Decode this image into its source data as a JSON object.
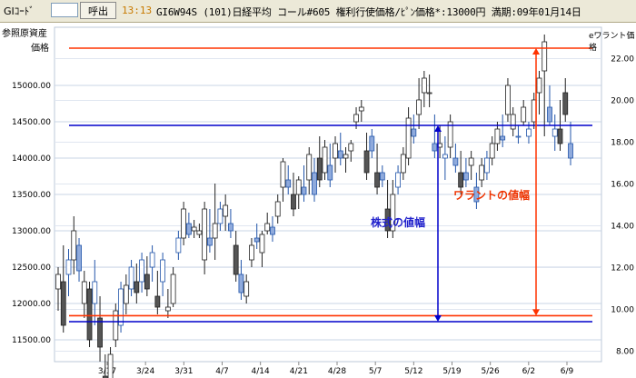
{
  "toolbar": {
    "code_label": "GIｺｰﾄﾞ",
    "code_value": "",
    "call_button": "呼出",
    "time": "13:13",
    "info": "GI6W94S (101)日経平均 コール#605 権利行使価格/ﾋﾟﾝ価格*:13000円 満期:09年01月14日"
  },
  "left_axis": {
    "title_line1": "参照原資産",
    "title_line2": "価格",
    "ticks": [
      "15000.00",
      "14500.00",
      "14000.00",
      "13500.00",
      "13000.00",
      "12500.00",
      "12000.00",
      "11500.00"
    ]
  },
  "right_axis": {
    "title": "eワラント価格",
    "ticks": [
      "22.00",
      "20.00",
      "18.00",
      "16.00",
      "14.00",
      "12.00",
      "10.00",
      "8.00"
    ]
  },
  "x_axis": {
    "ticks": [
      "3/17",
      "3/24",
      "3/31",
      "4/7",
      "4/14",
      "4/21",
      "4/28",
      "5/7",
      "5/12",
      "5/19",
      "5/26",
      "6/2",
      "6/9"
    ]
  },
  "annotations": {
    "stock_range": "株式の値幅",
    "warrant_range": "ワラントの値幅"
  },
  "colors": {
    "red_line": "#ff3300",
    "blue_line": "#0000cc",
    "stock_text": "#2222cc",
    "warrant_text": "#ee3300"
  },
  "chart_data": {
    "type": "candlestick",
    "left_axis_range": [
      11200,
      15800
    ],
    "right_axis_range": [
      7.5,
      23.5
    ],
    "reference_lines": {
      "stock_high": 14450,
      "stock_low": 11750,
      "warrant_high": 22.5,
      "warrant_low": 9.7
    },
    "candles": [
      {
        "o": 12200,
        "h": 12500,
        "l": 11900,
        "c": 12400,
        "s": "stock"
      },
      {
        "o": 12300,
        "h": 12800,
        "l": 11600,
        "c": 11700,
        "s": "stock"
      },
      {
        "o": 12400,
        "h": 12750,
        "l": 12100,
        "c": 12600,
        "s": "warrant"
      },
      {
        "o": 12600,
        "h": 13200,
        "l": 12400,
        "c": 13000,
        "s": "stock"
      },
      {
        "o": 12800,
        "h": 12900,
        "l": 12300,
        "c": 12450,
        "s": "warrant"
      },
      {
        "o": 12000,
        "h": 12450,
        "l": 11800,
        "c": 12300,
        "s": "stock"
      },
      {
        "o": 12200,
        "h": 12300,
        "l": 11400,
        "c": 11500,
        "s": "stock"
      },
      {
        "o": 12000,
        "h": 12600,
        "l": 11700,
        "c": 12300,
        "s": "warrant"
      },
      {
        "o": 11800,
        "h": 12100,
        "l": 11200,
        "c": 11400,
        "s": "stock"
      },
      {
        "o": 11000,
        "h": 11300,
        "l": 10700,
        "c": 10900,
        "s": "stock"
      },
      {
        "o": 10800,
        "h": 11400,
        "l": 10700,
        "c": 11300,
        "s": "stock"
      },
      {
        "o": 11500,
        "h": 12000,
        "l": 11400,
        "c": 11900,
        "s": "stock"
      },
      {
        "o": 11700,
        "h": 12300,
        "l": 11600,
        "c": 12200,
        "s": "warrant"
      },
      {
        "o": 12000,
        "h": 12400,
        "l": 11850,
        "c": 12250,
        "s": "stock"
      },
      {
        "o": 12200,
        "h": 12600,
        "l": 12100,
        "c": 12500,
        "s": "warrant"
      },
      {
        "o": 12300,
        "h": 12550,
        "l": 12000,
        "c": 12150,
        "s": "stock"
      },
      {
        "o": 12300,
        "h": 12700,
        "l": 12150,
        "c": 12600,
        "s": "warrant"
      },
      {
        "o": 12400,
        "h": 12650,
        "l": 12100,
        "c": 12200,
        "s": "stock"
      },
      {
        "o": 12500,
        "h": 12800,
        "l": 12300,
        "c": 12700,
        "s": "warrant"
      },
      {
        "o": 12100,
        "h": 12450,
        "l": 11850,
        "c": 11950,
        "s": "stock"
      },
      {
        "o": 12300,
        "h": 12700,
        "l": 12100,
        "c": 12600,
        "s": "warrant"
      },
      {
        "o": 11900,
        "h": 12200,
        "l": 11800,
        "c": 11950,
        "s": "stock"
      },
      {
        "o": 12000,
        "h": 12500,
        "l": 11950,
        "c": 12400,
        "s": "stock"
      },
      {
        "o": 12700,
        "h": 13000,
        "l": 12600,
        "c": 12900,
        "s": "warrant"
      },
      {
        "o": 12900,
        "h": 13400,
        "l": 12800,
        "c": 13300,
        "s": "stock"
      },
      {
        "o": 13100,
        "h": 13250,
        "l": 12900,
        "c": 12950,
        "s": "warrant"
      },
      {
        "o": 13000,
        "h": 13150,
        "l": 12900,
        "c": 13050,
        "s": "stock"
      },
      {
        "o": 12950,
        "h": 13100,
        "l": 12900,
        "c": 13000,
        "s": "stock"
      },
      {
        "o": 12600,
        "h": 13400,
        "l": 12400,
        "c": 13300,
        "s": "stock"
      },
      {
        "o": 12900,
        "h": 13300,
        "l": 12700,
        "c": 12800,
        "s": "warrant"
      },
      {
        "o": 12900,
        "h": 13650,
        "l": 12600,
        "c": 13100,
        "s": "stock"
      },
      {
        "o": 13100,
        "h": 13400,
        "l": 13000,
        "c": 13300,
        "s": "warrant"
      },
      {
        "o": 13200,
        "h": 13500,
        "l": 13000,
        "c": 13350,
        "s": "stock"
      },
      {
        "o": 13100,
        "h": 13300,
        "l": 12900,
        "c": 13000,
        "s": "warrant"
      },
      {
        "o": 12800,
        "h": 13000,
        "l": 12300,
        "c": 12400,
        "s": "stock"
      },
      {
        "o": 12400,
        "h": 12600,
        "l": 12050,
        "c": 12150,
        "s": "warrant"
      },
      {
        "o": 12100,
        "h": 12400,
        "l": 12000,
        "c": 12300,
        "s": "stock"
      },
      {
        "o": 12600,
        "h": 12900,
        "l": 12500,
        "c": 12800,
        "s": "stock"
      },
      {
        "o": 12900,
        "h": 13100,
        "l": 12750,
        "c": 12850,
        "s": "warrant"
      },
      {
        "o": 12700,
        "h": 13000,
        "l": 12500,
        "c": 12950,
        "s": "stock"
      },
      {
        "o": 13000,
        "h": 13250,
        "l": 12950,
        "c": 13100,
        "s": "stock"
      },
      {
        "o": 13050,
        "h": 13200,
        "l": 12850,
        "c": 12950,
        "s": "warrant"
      },
      {
        "o": 13200,
        "h": 13500,
        "l": 13100,
        "c": 13400,
        "s": "stock"
      },
      {
        "o": 13600,
        "h": 14000,
        "l": 13400,
        "c": 13950,
        "s": "stock"
      },
      {
        "o": 13700,
        "h": 13900,
        "l": 13500,
        "c": 13600,
        "s": "warrant"
      },
      {
        "o": 13500,
        "h": 13800,
        "l": 13200,
        "c": 13300,
        "s": "stock"
      },
      {
        "o": 13500,
        "h": 13750,
        "l": 13300,
        "c": 13700,
        "s": "stock"
      },
      {
        "o": 13600,
        "h": 13900,
        "l": 13400,
        "c": 13500,
        "s": "warrant"
      },
      {
        "o": 13700,
        "h": 14150,
        "l": 13500,
        "c": 14050,
        "s": "stock"
      },
      {
        "o": 13800,
        "h": 14000,
        "l": 13400,
        "c": 13500,
        "s": "warrant"
      },
      {
        "o": 14000,
        "h": 14300,
        "l": 13600,
        "c": 13700,
        "s": "stock"
      },
      {
        "o": 13800,
        "h": 14250,
        "l": 13700,
        "c": 14150,
        "s": "stock"
      },
      {
        "o": 13900,
        "h": 14200,
        "l": 13600,
        "c": 13700,
        "s": "warrant"
      },
      {
        "o": 14000,
        "h": 14300,
        "l": 13800,
        "c": 14200,
        "s": "stock"
      },
      {
        "o": 14100,
        "h": 14350,
        "l": 13900,
        "c": 14000,
        "s": "warrant"
      },
      {
        "o": 14000,
        "h": 14150,
        "l": 13800,
        "c": 14050,
        "s": "stock"
      },
      {
        "o": 14100,
        "h": 14250,
        "l": 13950,
        "c": 14200,
        "s": "stock"
      },
      {
        "o": 14500,
        "h": 14700,
        "l": 14400,
        "c": 14600,
        "s": "stock"
      },
      {
        "o": 14650,
        "h": 14800,
        "l": 14500,
        "c": 14700,
        "s": "stock"
      },
      {
        "o": 14100,
        "h": 14350,
        "l": 13700,
        "c": 13800,
        "s": "stock"
      },
      {
        "o": 14300,
        "h": 14400,
        "l": 14000,
        "c": 14100,
        "s": "warrant"
      },
      {
        "o": 13800,
        "h": 14200,
        "l": 13500,
        "c": 13600,
        "s": "stock"
      },
      {
        "o": 13800,
        "h": 13900,
        "l": 13600,
        "c": 13700,
        "s": "warrant"
      },
      {
        "o": 13300,
        "h": 13700,
        "l": 12900,
        "c": 13000,
        "s": "stock"
      },
      {
        "o": 13000,
        "h": 13700,
        "l": 12900,
        "c": 13500,
        "s": "stock"
      },
      {
        "o": 13600,
        "h": 13900,
        "l": 13500,
        "c": 13800,
        "s": "warrant"
      },
      {
        "o": 13800,
        "h": 14150,
        "l": 13700,
        "c": 14050,
        "s": "stock"
      },
      {
        "o": 14000,
        "h": 14700,
        "l": 13900,
        "c": 14550,
        "s": "stock"
      },
      {
        "o": 14400,
        "h": 14600,
        "l": 14200,
        "c": 14300,
        "s": "warrant"
      },
      {
        "o": 14600,
        "h": 15100,
        "l": 14400,
        "c": 14800,
        "s": "stock"
      },
      {
        "o": 14900,
        "h": 15200,
        "l": 14700,
        "c": 15100,
        "s": "stock"
      },
      {
        "o": 14900,
        "h": 15150,
        "l": 14700,
        "c": 14900,
        "s": "stock"
      },
      {
        "o": 14200,
        "h": 14600,
        "l": 14000,
        "c": 14100,
        "s": "warrant"
      },
      {
        "o": 14150,
        "h": 14450,
        "l": 14000,
        "c": 14200,
        "s": "stock"
      },
      {
        "o": 14000,
        "h": 14300,
        "l": 13700,
        "c": 14050,
        "s": "warrant"
      },
      {
        "o": 14150,
        "h": 14600,
        "l": 14000,
        "c": 14500,
        "s": "stock"
      },
      {
        "o": 14000,
        "h": 14200,
        "l": 13800,
        "c": 13900,
        "s": "warrant"
      },
      {
        "o": 13800,
        "h": 14100,
        "l": 13500,
        "c": 13600,
        "s": "stock"
      },
      {
        "o": 13800,
        "h": 14000,
        "l": 13600,
        "c": 13700,
        "s": "warrant"
      },
      {
        "o": 13900,
        "h": 14100,
        "l": 13700,
        "c": 14000,
        "s": "stock"
      },
      {
        "o": 13600,
        "h": 13800,
        "l": 13300,
        "c": 13400,
        "s": "warrant"
      },
      {
        "o": 13700,
        "h": 14000,
        "l": 13600,
        "c": 13900,
        "s": "stock"
      },
      {
        "o": 13800,
        "h": 14100,
        "l": 13700,
        "c": 14000,
        "s": "warrant"
      },
      {
        "o": 14000,
        "h": 14300,
        "l": 13900,
        "c": 14200,
        "s": "stock"
      },
      {
        "o": 14200,
        "h": 14500,
        "l": 14100,
        "c": 14400,
        "s": "stock"
      },
      {
        "o": 14300,
        "h": 14600,
        "l": 14150,
        "c": 14250,
        "s": "warrant"
      },
      {
        "o": 14600,
        "h": 15100,
        "l": 14500,
        "c": 15000,
        "s": "stock"
      },
      {
        "o": 14400,
        "h": 14700,
        "l": 14300,
        "c": 14600,
        "s": "stock"
      },
      {
        "o": 14300,
        "h": 14450,
        "l": 14200,
        "c": 14300,
        "s": "warrant"
      },
      {
        "o": 14500,
        "h": 14800,
        "l": 14450,
        "c": 14700,
        "s": "stock"
      },
      {
        "o": 14300,
        "h": 14500,
        "l": 14200,
        "c": 14400,
        "s": "warrant"
      },
      {
        "o": 14500,
        "h": 14900,
        "l": 14400,
        "c": 14800,
        "s": "stock"
      },
      {
        "o": 14900,
        "h": 15200,
        "l": 14600,
        "c": 15100,
        "s": "stock"
      },
      {
        "o": 15200,
        "h": 15700,
        "l": 14300,
        "c": 15600,
        "s": "stock"
      },
      {
        "o": 14700,
        "h": 15000,
        "l": 14450,
        "c": 14500,
        "s": "warrant"
      },
      {
        "o": 14300,
        "h": 14600,
        "l": 14100,
        "c": 14400,
        "s": "warrant"
      },
      {
        "o": 14400,
        "h": 14800,
        "l": 14100,
        "c": 14200,
        "s": "stock"
      },
      {
        "o": 14900,
        "h": 15100,
        "l": 14500,
        "c": 14600,
        "s": "stock"
      },
      {
        "o": 14200,
        "h": 14500,
        "l": 13900,
        "c": 14000,
        "s": "warrant"
      }
    ]
  }
}
